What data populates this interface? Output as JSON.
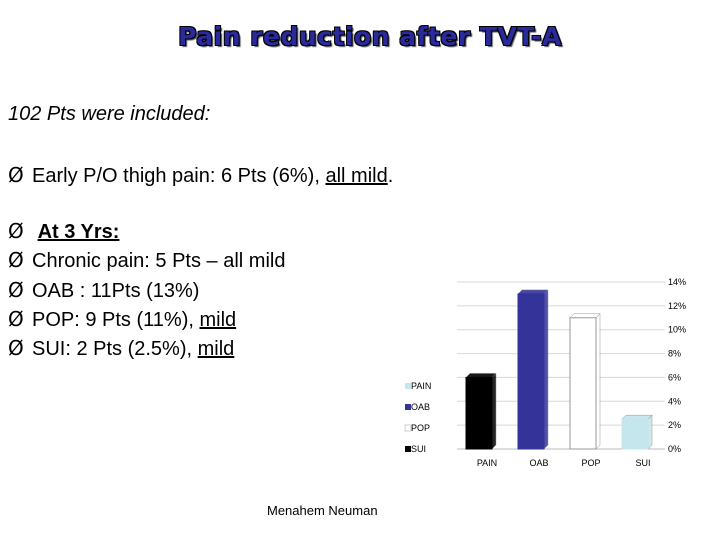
{
  "slide": {
    "title": "Pain reduction after TVT-A",
    "intro": "102 Pts were included:",
    "bullet_early": {
      "text": "Early P/O thigh pain: 6 Pts (6%), ",
      "emphasis": "all mild",
      "tail": "."
    },
    "bullet_3yrs": "At 3 Yrs:",
    "bullet_chronic": "Chronic pain: 5 Pts – all mild",
    "bullet_oab": "OAB : 11Pts (13%)",
    "bullet_pop": {
      "text": "POP: 9 Pts (11%), ",
      "emphasis": "mild"
    },
    "bullet_sui": {
      "text": "SUI: 2 Pts (2.5%), ",
      "emphasis": "mild"
    },
    "arrow": "Ø",
    "footer": "Menahem Neuman"
  },
  "chart_data": {
    "type": "bar",
    "categories": [
      "PAIN",
      "OAB",
      "POP",
      "SUI"
    ],
    "values": [
      6,
      13,
      11,
      2.5
    ],
    "colors": [
      "#000000",
      "#333399",
      "#ffffff",
      "#c4e6ec"
    ],
    "yticks": [
      "0%",
      "2%",
      "4%",
      "6%",
      "8%",
      "10%",
      "12%",
      "14%"
    ],
    "ylim": [
      0,
      14
    ],
    "legend": [
      "PAIN",
      "OAB",
      "POP",
      "SUI"
    ],
    "legend_colors": [
      "#c4e6ec",
      "#333399",
      "#ffffff",
      "#000000"
    ],
    "legend_position": "left"
  }
}
